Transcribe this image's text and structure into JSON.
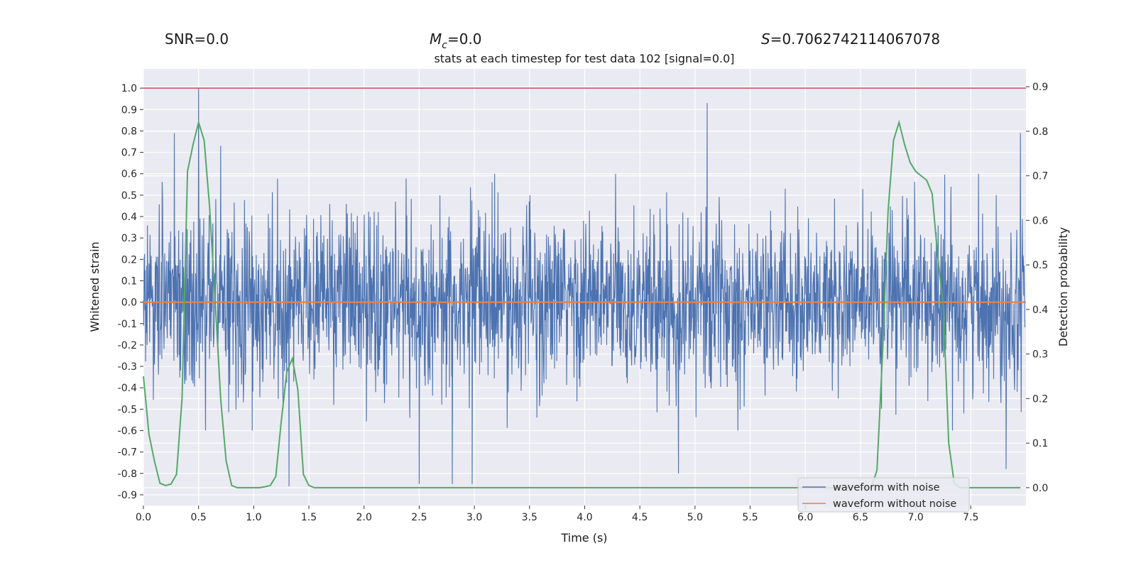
{
  "chart_data": {
    "type": "line",
    "headers": {
      "snr": "SNR=0.0",
      "mc_symbol": "M",
      "mc_subscript": "c",
      "mc_value": "=0.0",
      "s_symbol": "S",
      "s_value": "=0.7062742114067078"
    },
    "title": "stats at each timestep for test data 102 [signal=0.0]",
    "xlabel": "Time (s)",
    "ylabel": "Whitened strain",
    "y2label": "Detection probability",
    "xlim": [
      0.0,
      8.0
    ],
    "ylim": [
      -0.95,
      1.09
    ],
    "y2lim": [
      -0.04,
      0.94
    ],
    "xticks": [
      "0.0",
      "0.5",
      "1.0",
      "1.5",
      "2.0",
      "2.5",
      "3.0",
      "3.5",
      "4.0",
      "4.5",
      "5.0",
      "5.5",
      "6.0",
      "6.5",
      "7.0",
      "7.5"
    ],
    "yticks": [
      "1.0",
      "0.9",
      "0.8",
      "0.7",
      "0.6",
      "0.5",
      "0.4",
      "0.3",
      "0.2",
      "0.1",
      "0.0",
      "-0.1",
      "-0.2",
      "-0.3",
      "-0.4",
      "-0.5",
      "-0.6",
      "-0.7",
      "-0.8",
      "-0.9"
    ],
    "y2ticks": [
      "0.9",
      "0.8",
      "0.7",
      "0.6",
      "0.5",
      "0.4",
      "0.3",
      "0.2",
      "0.1",
      "0.0"
    ],
    "threshold_line": {
      "y": 1.0,
      "color": "#c44e52"
    },
    "series": [
      {
        "name": "waveform with noise",
        "color": "#4c72b0",
        "axis": "left",
        "description": "dense whitened noise, mostly within ±0.45 with occasional spikes",
        "notable_peaks": [
          {
            "x": 0.28,
            "y": 0.79
          },
          {
            "x": 0.5,
            "y": 1.0
          },
          {
            "x": 0.7,
            "y": 0.73
          },
          {
            "x": 5.11,
            "y": 0.93
          },
          {
            "x": 7.95,
            "y": 0.79
          },
          {
            "x": 1.32,
            "y": -0.86
          },
          {
            "x": 2.5,
            "y": -0.85
          },
          {
            "x": 2.8,
            "y": -0.85
          },
          {
            "x": 2.98,
            "y": -0.85
          },
          {
            "x": 4.85,
            "y": -0.8
          },
          {
            "x": 7.82,
            "y": -0.78
          }
        ],
        "envelope": {
          "upper": 0.45,
          "lower": -0.45
        }
      },
      {
        "name": "waveform without noise",
        "color": "#dd8452",
        "axis": "left",
        "x": [
          0.0,
          8.0
        ],
        "values": [
          0.0,
          0.0
        ]
      },
      {
        "name": "detection probability",
        "color": "#55a868",
        "axis": "right",
        "x": [
          0.0,
          0.05,
          0.1,
          0.15,
          0.2,
          0.25,
          0.3,
          0.35,
          0.4,
          0.45,
          0.5,
          0.55,
          0.6,
          0.65,
          0.7,
          0.75,
          0.8,
          0.85,
          0.9,
          0.95,
          1.0,
          1.05,
          1.1,
          1.15,
          1.2,
          1.25,
          1.3,
          1.35,
          1.4,
          1.45,
          1.5,
          1.55,
          1.6,
          2.0,
          6.5,
          6.6,
          6.65,
          6.7,
          6.75,
          6.8,
          6.85,
          6.9,
          6.95,
          7.0,
          7.05,
          7.1,
          7.15,
          7.2,
          7.25,
          7.3,
          7.35,
          7.4,
          7.45,
          7.5,
          7.95
        ],
        "values": [
          0.25,
          0.12,
          0.06,
          0.01,
          0.005,
          0.008,
          0.03,
          0.2,
          0.71,
          0.77,
          0.82,
          0.78,
          0.63,
          0.42,
          0.2,
          0.06,
          0.005,
          0.0,
          0.0,
          0.0,
          0.0,
          0.0,
          0.002,
          0.005,
          0.025,
          0.15,
          0.26,
          0.29,
          0.22,
          0.03,
          0.005,
          0.0,
          0.0,
          0.0,
          0.0,
          0.0,
          0.04,
          0.3,
          0.62,
          0.78,
          0.82,
          0.77,
          0.73,
          0.71,
          0.7,
          0.69,
          0.66,
          0.52,
          0.41,
          0.1,
          0.01,
          0.0,
          0.0,
          0.0,
          0.0
        ]
      }
    ],
    "legend": [
      "waveform with noise",
      "waveform without noise"
    ],
    "legend_position": "bottom-right",
    "grid": true
  }
}
